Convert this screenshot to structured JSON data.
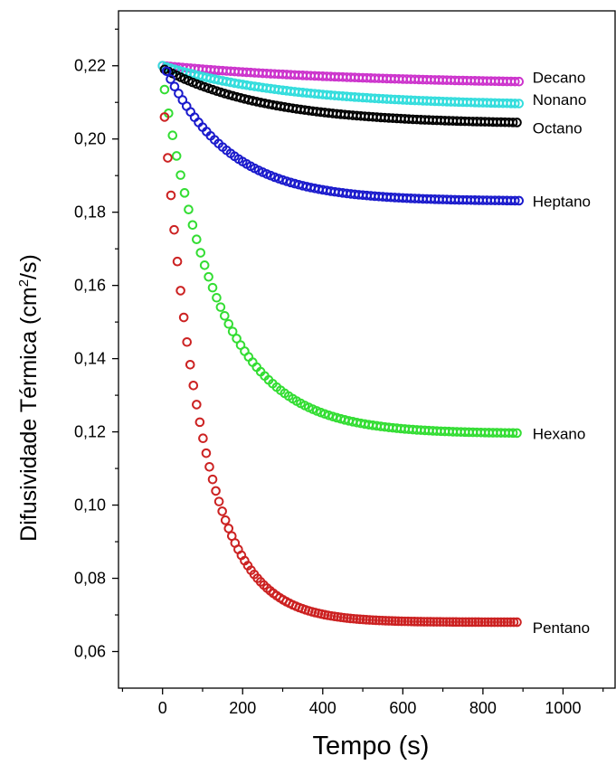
{
  "chart_data": {
    "type": "scatter",
    "xlabel": "Tempo (s)",
    "ylabel_main": "Difusividade Térmica (cm",
    "ylabel_sup": "2",
    "ylabel_end": "/s)",
    "xlim": [
      -110,
      1130
    ],
    "ylim": [
      0.05,
      0.235
    ],
    "xticks": [
      0,
      200,
      400,
      600,
      800,
      1000
    ],
    "xtick_labels": [
      "0",
      "200",
      "400",
      "600",
      "800",
      "1000"
    ],
    "yticks": [
      0.06,
      0.08,
      0.1,
      0.12,
      0.14,
      0.16,
      0.18,
      0.2,
      0.22
    ],
    "ytick_labels": [
      "0,06",
      "0,08",
      "0,10",
      "0,12",
      "0,14",
      "0,16",
      "0,18",
      "0,20",
      "0,22"
    ],
    "grid": false,
    "marker": "open-circle",
    "series": [
      {
        "name": "Decano",
        "color": "#cc33cc",
        "start": 0.22,
        "final": 0.2148,
        "tau": 500,
        "x0": 0,
        "step": 10,
        "xmax": 890,
        "label_x": 890,
        "label_y": 0.2168
      },
      {
        "name": "Nonano",
        "color": "#33dddd",
        "start": 0.22,
        "final": 0.209,
        "tau": 320,
        "x0": 0,
        "step": 10,
        "xmax": 890,
        "label_x": 890,
        "label_y": 0.2108
      },
      {
        "name": "Octano",
        "color": "#000000",
        "start": 0.219,
        "final": 0.204,
        "tau": 260,
        "x0": 5,
        "step": 10,
        "xmax": 890,
        "label_x": 890,
        "label_y": 0.203
      },
      {
        "name": "Heptano",
        "color": "#1a1acc",
        "start": 0.2185,
        "final": 0.183,
        "tau": 160,
        "x0": 10,
        "step": 10,
        "xmax": 890,
        "label_x": 890,
        "label_y": 0.183
      },
      {
        "name": "Hexano",
        "color": "#33dd33",
        "start": 0.2135,
        "final": 0.1195,
        "tau": 140,
        "x0": 5,
        "step": 10,
        "xmax": 890,
        "label_x": 890,
        "label_y": 0.1195
      },
      {
        "name": "Pentano",
        "color": "#cc2222",
        "start": 0.206,
        "final": 0.068,
        "tau": 95,
        "x0": 5,
        "step": 8,
        "xmax": 890,
        "label_x": 890,
        "label_y": 0.0665
      }
    ]
  }
}
